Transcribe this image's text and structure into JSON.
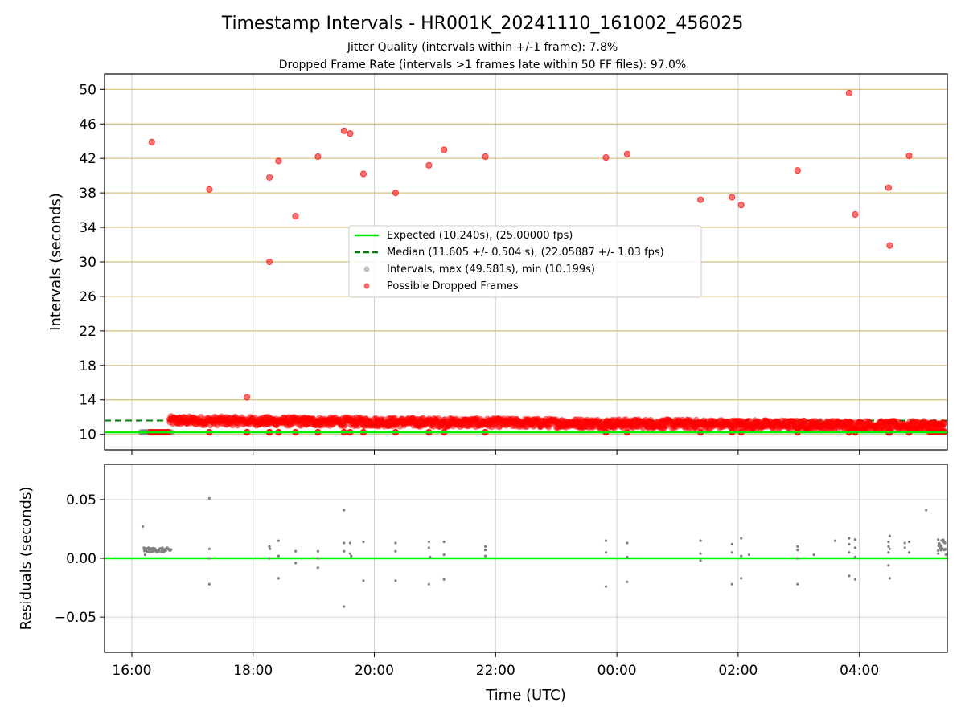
{
  "chart_data": [
    {
      "type": "scatter",
      "title": "Timestamp Intervals - HR001K_20241110_161002_456025",
      "subtitle_lines": [
        "Jitter Quality (intervals within +/-1 frame): 7.8%",
        "Dropped Frame Rate (intervals >1 frames late within 50 FF files): 97.0%"
      ],
      "ylabel": "Intervals (seconds)",
      "ylim": [
        8.2,
        51.8
      ],
      "yticks": [
        10,
        14,
        18,
        22,
        26,
        30,
        34,
        38,
        42,
        46,
        50
      ],
      "xlim_hours": [
        15.55,
        29.45
      ],
      "grid": true,
      "legend_position": "center",
      "legend": [
        "Expected (10.240s), (25.00000 fps)",
        "Median (11.605 +/- 0.504 s), (22.05887 +/- 1.03 fps)",
        "Intervals, max (49.581s), min (10.199s)",
        "Possible Dropped Frames"
      ],
      "reference_lines": {
        "expected": 10.24,
        "median": 11.605
      },
      "dense_band": {
        "x_start_hours": 16.62,
        "x_end_hours": 29.4,
        "y_center_start": 11.6,
        "y_center_end": 11.0,
        "spread": 0.5
      },
      "series": [
        {
          "name": "Possible Dropped Frames",
          "points_hours": [
            [
              16.33,
              43.9
            ],
            [
              17.28,
              38.4
            ],
            [
              17.9,
              14.3
            ],
            [
              18.27,
              39.8
            ],
            [
              18.27,
              30.0
            ],
            [
              18.42,
              41.7
            ],
            [
              18.7,
              35.3
            ],
            [
              19.07,
              42.2
            ],
            [
              19.5,
              45.2
            ],
            [
              19.6,
              44.9
            ],
            [
              19.82,
              40.2
            ],
            [
              20.35,
              38.0
            ],
            [
              20.9,
              41.2
            ],
            [
              21.15,
              43.0
            ],
            [
              21.83,
              42.2
            ],
            [
              23.82,
              42.1
            ],
            [
              24.17,
              42.5
            ],
            [
              25.38,
              37.2
            ],
            [
              25.9,
              37.5
            ],
            [
              26.05,
              36.6
            ],
            [
              26.98,
              40.6
            ],
            [
              27.83,
              49.58
            ],
            [
              27.93,
              35.5
            ],
            [
              28.48,
              38.6
            ],
            [
              28.5,
              31.9
            ],
            [
              28.82,
              42.3
            ]
          ]
        },
        {
          "name": "Intervals, max (49.581s), min (10.199s)",
          "x_range_hours": [
            16.15,
            16.65
          ],
          "value": 10.24
        }
      ]
    },
    {
      "type": "scatter",
      "ylabel": "Residuals (seconds)",
      "xlabel": "Time (UTC)",
      "ylim": [
        -0.08,
        0.08
      ],
      "yticks": [
        -0.05,
        0.0,
        0.05
      ],
      "ytick_labels": [
        "−0.05",
        "0.00",
        "0.05"
      ],
      "xlim_hours": [
        15.55,
        29.45
      ],
      "xticks_hours": [
        16,
        18,
        20,
        22,
        24,
        26,
        28
      ],
      "xtick_labels": [
        "16:00",
        "18:00",
        "20:00",
        "22:00",
        "00:00",
        "02:00",
        "04:00"
      ],
      "zero_line": 0,
      "grid": true,
      "series": [
        {
          "name": "Residuals",
          "points_hours": [
            [
              16.18,
              0.027
            ],
            [
              16.2,
              0.009
            ],
            [
              16.22,
              0.003
            ],
            [
              17.28,
              0.051
            ],
            [
              17.28,
              0.008
            ],
            [
              17.28,
              0.0
            ],
            [
              17.28,
              -0.022
            ],
            [
              18.27,
              0.01
            ],
            [
              18.28,
              0.008
            ],
            [
              18.27,
              0.0
            ],
            [
              18.42,
              0.015
            ],
            [
              18.42,
              0.002
            ],
            [
              18.42,
              -0.017
            ],
            [
              18.7,
              0.006
            ],
            [
              18.7,
              -0.004
            ],
            [
              19.07,
              0.006
            ],
            [
              19.07,
              0.0
            ],
            [
              19.07,
              -0.008
            ],
            [
              19.5,
              0.041
            ],
            [
              19.5,
              0.013
            ],
            [
              19.5,
              0.006
            ],
            [
              19.5,
              -0.041
            ],
            [
              19.6,
              0.013
            ],
            [
              19.6,
              0.004
            ],
            [
              19.62,
              0.002
            ],
            [
              19.82,
              0.014
            ],
            [
              19.82,
              -0.019
            ],
            [
              20.35,
              0.013
            ],
            [
              20.35,
              0.006
            ],
            [
              20.35,
              -0.019
            ],
            [
              20.9,
              0.014
            ],
            [
              20.9,
              0.009
            ],
            [
              20.92,
              0.001
            ],
            [
              20.9,
              -0.022
            ],
            [
              21.15,
              0.014
            ],
            [
              21.15,
              0.003
            ],
            [
              21.15,
              -0.018
            ],
            [
              21.83,
              0.01
            ],
            [
              21.83,
              0.007
            ],
            [
              21.83,
              0.002
            ],
            [
              23.82,
              0.015
            ],
            [
              23.82,
              0.005
            ],
            [
              23.82,
              -0.024
            ],
            [
              24.17,
              0.013
            ],
            [
              24.17,
              0.001
            ],
            [
              24.17,
              -0.02
            ],
            [
              25.38,
              0.015
            ],
            [
              25.38,
              0.004
            ],
            [
              25.38,
              -0.002
            ],
            [
              25.9,
              0.012
            ],
            [
              25.9,
              0.005
            ],
            [
              25.9,
              -0.022
            ],
            [
              26.05,
              0.017
            ],
            [
              26.05,
              0.002
            ],
            [
              26.05,
              -0.017
            ],
            [
              26.18,
              0.003
            ],
            [
              26.98,
              0.01
            ],
            [
              26.98,
              0.007
            ],
            [
              26.98,
              0.0
            ],
            [
              26.98,
              -0.022
            ],
            [
              27.25,
              0.003
            ],
            [
              27.6,
              0.015
            ],
            [
              27.83,
              0.017
            ],
            [
              27.83,
              0.012
            ],
            [
              27.83,
              0.005
            ],
            [
              27.83,
              -0.015
            ],
            [
              27.93,
              0.016
            ],
            [
              27.93,
              0.009
            ],
            [
              27.93,
              0.001
            ],
            [
              27.93,
              -0.018
            ],
            [
              28.48,
              0.014
            ],
            [
              28.48,
              0.01
            ],
            [
              28.48,
              0.005
            ],
            [
              28.48,
              -0.006
            ],
            [
              28.5,
              0.019
            ],
            [
              28.5,
              0.008
            ],
            [
              28.5,
              -0.017
            ],
            [
              28.75,
              0.013
            ],
            [
              28.75,
              0.009
            ],
            [
              28.82,
              0.014
            ],
            [
              28.82,
              0.005
            ],
            [
              29.1,
              0.041
            ],
            [
              29.3,
              0.016
            ],
            [
              29.35,
              0.01
            ],
            [
              29.3,
              0.004
            ],
            [
              29.4,
              0.007
            ]
          ]
        }
      ]
    }
  ],
  "colors": {
    "dropped": "#ff0000",
    "interval": "#808080",
    "expected": "#00ee00",
    "median": "#008000",
    "grid": "#d0d0d0",
    "hgrid": "#d9bf77"
  }
}
